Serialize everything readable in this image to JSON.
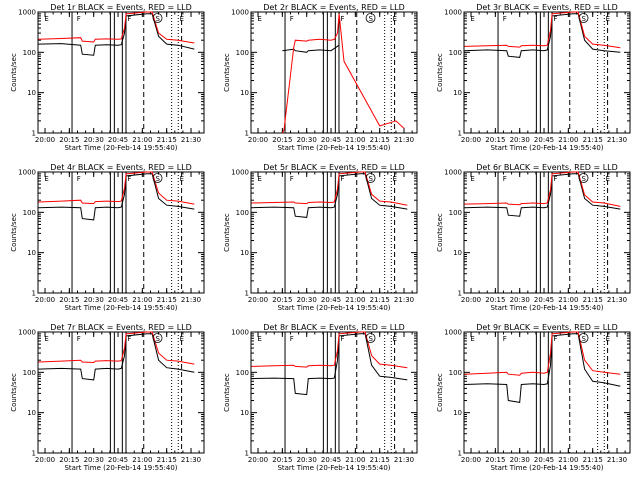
{
  "chart_data": [
    {
      "type": "line",
      "title": "Det 1r BLACK = Events, RED = LLD",
      "xlabel": "Start Time (20-Feb-14 19:55:40)",
      "ylabel": "Counts/sec",
      "yscale": "log",
      "ylim": [
        1,
        1000
      ],
      "xlim": [
        "19:55:40",
        "21:38:00"
      ],
      "x_tick_labels": [
        "20:00",
        "20:15",
        "20:30",
        "20:45",
        "21:00",
        "21:15",
        "21:30"
      ],
      "y_tick_labels": [
        "1",
        "10",
        "100",
        "1000"
      ],
      "series": [
        {
          "color": "#000000",
          "x": [
            "19:56",
            "20:10",
            "20:22",
            "20:23",
            "20:30",
            "20:31",
            "20:38",
            "20:45",
            "20:47",
            "20:49",
            "20:50",
            "21:03",
            "21:06",
            "21:10",
            "21:15",
            "21:22",
            "21:32"
          ],
          "y": [
            160,
            165,
            150,
            90,
            85,
            150,
            155,
            150,
            155,
            300,
            800,
            900,
            900,
            250,
            160,
            150,
            120
          ]
        },
        {
          "color": "#ff0000",
          "x": [
            "19:56",
            "20:10",
            "20:22",
            "20:23",
            "20:30",
            "20:31",
            "20:38",
            "20:45",
            "20:47",
            "20:49",
            "20:50",
            "21:03",
            "21:06",
            "21:10",
            "21:15",
            "21:22",
            "21:32"
          ],
          "y": [
            210,
            220,
            230,
            190,
            180,
            210,
            215,
            210,
            215,
            400,
            900,
            1000,
            1000,
            300,
            210,
            200,
            170
          ]
        }
      ],
      "annotations": [
        "E",
        "F",
        "F",
        "S",
        "E"
      ]
    },
    {
      "type": "line",
      "title": "Det 2r BLACK = Events, RED = LLD",
      "xlabel": "Start Time (20-Feb-14 19:55:40)",
      "ylabel": "Counts/sec",
      "yscale": "log",
      "ylim": [
        1,
        1000
      ],
      "xlim": [
        "19:55:40",
        "21:38:00"
      ],
      "x_tick_labels": [
        "20:00",
        "20:15",
        "20:30",
        "20:45",
        "21:00",
        "21:15",
        "21:30"
      ],
      "y_tick_labels": [
        "1",
        "10",
        "100",
        "1000"
      ],
      "series": [
        {
          "color": "#000000",
          "x": [
            "20:15",
            "20:22",
            "20:23",
            "20:30",
            "20:31",
            "20:38",
            "20:45",
            "20:50"
          ],
          "y": [
            110,
            120,
            110,
            100,
            110,
            115,
            110,
            150
          ]
        },
        {
          "color": "#ff0000",
          "x": [
            "20:15",
            "20:16",
            "20:22",
            "20:23",
            "20:30",
            "20:31",
            "20:38",
            "20:45",
            "20:47",
            "20:49",
            "20:50",
            "20:53",
            "21:15",
            "21:25",
            "21:30"
          ],
          "y": [
            1,
            1.2,
            130,
            200,
            190,
            200,
            210,
            200,
            210,
            300,
            900,
            60,
            1.5,
            2,
            1.3
          ]
        }
      ],
      "annotations": [
        "E",
        "F",
        "F",
        "S",
        "E"
      ]
    },
    {
      "type": "line",
      "title": "Det 3r BLACK = Events, RED = LLD",
      "xlabel": "Start Time (20-Feb-14 19:55:40)",
      "ylabel": "Counts/sec",
      "yscale": "log",
      "ylim": [
        1,
        1000
      ],
      "xlim": [
        "19:55:40",
        "21:38:00"
      ],
      "x_tick_labels": [
        "20:00",
        "20:15",
        "20:30",
        "20:45",
        "21:00",
        "21:15",
        "21:30"
      ],
      "y_tick_labels": [
        "1",
        "10",
        "100",
        "1000"
      ],
      "series": [
        {
          "color": "#000000",
          "x": [
            "19:56",
            "20:10",
            "20:22",
            "20:23",
            "20:30",
            "20:31",
            "20:38",
            "20:45",
            "20:47",
            "20:49",
            "20:50",
            "21:03",
            "21:06",
            "21:10",
            "21:15",
            "21:22",
            "21:32"
          ],
          "y": [
            110,
            115,
            110,
            80,
            75,
            110,
            115,
            110,
            115,
            250,
            800,
            900,
            900,
            200,
            120,
            110,
            100
          ]
        },
        {
          "color": "#ff0000",
          "x": [
            "19:56",
            "20:10",
            "20:22",
            "20:23",
            "20:30",
            "20:31",
            "20:38",
            "20:45",
            "20:47",
            "20:49",
            "20:50",
            "21:03",
            "21:06",
            "21:10",
            "21:15",
            "21:22",
            "21:32"
          ],
          "y": [
            140,
            145,
            150,
            140,
            135,
            145,
            150,
            145,
            150,
            350,
            900,
            1000,
            1000,
            250,
            160,
            150,
            130
          ]
        }
      ],
      "annotations": [
        "E",
        "F",
        "F",
        "S",
        "E"
      ]
    },
    {
      "type": "line",
      "title": "Det 4r BLACK = Events, RED = LLD",
      "xlabel": "Start Time (20-Feb-14 19:55:40)",
      "ylabel": "Counts/sec",
      "yscale": "log",
      "ylim": [
        1,
        1000
      ],
      "xlim": [
        "19:55:40",
        "21:38:00"
      ],
      "x_tick_labels": [
        "20:00",
        "20:15",
        "20:30",
        "20:45",
        "21:00",
        "21:15",
        "21:30"
      ],
      "y_tick_labels": [
        "1",
        "10",
        "100",
        "1000"
      ],
      "series": [
        {
          "color": "#000000",
          "x": [
            "19:56",
            "20:10",
            "20:22",
            "20:23",
            "20:30",
            "20:31",
            "20:38",
            "20:45",
            "20:47",
            "20:49",
            "20:50",
            "21:03",
            "21:06",
            "21:10",
            "21:15",
            "21:22",
            "21:32"
          ],
          "y": [
            130,
            135,
            130,
            70,
            65,
            130,
            135,
            130,
            135,
            280,
            800,
            900,
            900,
            220,
            150,
            140,
            120
          ]
        },
        {
          "color": "#ff0000",
          "x": [
            "19:56",
            "20:10",
            "20:22",
            "20:23",
            "20:30",
            "20:31",
            "20:38",
            "20:45",
            "20:47",
            "20:49",
            "20:50",
            "21:03",
            "21:06",
            "21:10",
            "21:15",
            "21:22",
            "21:32"
          ],
          "y": [
            180,
            190,
            200,
            170,
            165,
            185,
            190,
            185,
            190,
            400,
            900,
            1000,
            1000,
            300,
            200,
            190,
            160
          ]
        }
      ],
      "annotations": [
        "E",
        "F",
        "F",
        "S",
        "E"
      ]
    },
    {
      "type": "line",
      "title": "Det 5r BLACK = Events, RED = LLD",
      "xlabel": "Start Time (20-Feb-14 19:55:40)",
      "ylabel": "Counts/sec",
      "yscale": "log",
      "ylim": [
        1,
        1000
      ],
      "xlim": [
        "19:55:40",
        "21:38:00"
      ],
      "x_tick_labels": [
        "20:00",
        "20:15",
        "20:30",
        "20:45",
        "21:00",
        "21:15",
        "21:30"
      ],
      "y_tick_labels": [
        "1",
        "10",
        "100",
        "1000"
      ],
      "series": [
        {
          "color": "#000000",
          "x": [
            "19:56",
            "20:10",
            "20:22",
            "20:23",
            "20:30",
            "20:31",
            "20:38",
            "20:45",
            "20:47",
            "20:49",
            "20:50",
            "21:03",
            "21:06",
            "21:10",
            "21:15",
            "21:22",
            "21:32"
          ],
          "y": [
            130,
            135,
            130,
            80,
            75,
            130,
            135,
            130,
            135,
            280,
            800,
            900,
            900,
            220,
            150,
            140,
            120
          ]
        },
        {
          "color": "#ff0000",
          "x": [
            "19:56",
            "20:10",
            "20:22",
            "20:23",
            "20:30",
            "20:31",
            "20:38",
            "20:45",
            "20:47",
            "20:49",
            "20:50",
            "21:03",
            "21:06",
            "21:10",
            "21:15",
            "21:22",
            "21:32"
          ],
          "y": [
            170,
            175,
            180,
            170,
            165,
            175,
            180,
            175,
            180,
            380,
            900,
            1000,
            1000,
            280,
            190,
            180,
            150
          ]
        }
      ],
      "annotations": [
        "E",
        "F",
        "F",
        "S",
        "E"
      ]
    },
    {
      "type": "line",
      "title": "Det 6r BLACK = Events, RED = LLD",
      "xlabel": "Start Time (20-Feb-14 19:55:40)",
      "ylabel": "Counts/sec",
      "yscale": "log",
      "ylim": [
        1,
        1000
      ],
      "xlim": [
        "19:55:40",
        "21:38:00"
      ],
      "x_tick_labels": [
        "20:00",
        "20:15",
        "20:30",
        "20:45",
        "21:00",
        "21:15",
        "21:30"
      ],
      "y_tick_labels": [
        "1",
        "10",
        "100",
        "1000"
      ],
      "series": [
        {
          "color": "#000000",
          "x": [
            "19:56",
            "20:10",
            "20:22",
            "20:23",
            "20:30",
            "20:31",
            "20:38",
            "20:45",
            "20:47",
            "20:49",
            "20:50",
            "21:03",
            "21:06",
            "21:10",
            "21:15",
            "21:22",
            "21:32"
          ],
          "y": [
            130,
            135,
            130,
            85,
            80,
            130,
            135,
            130,
            135,
            280,
            800,
            900,
            900,
            220,
            150,
            140,
            120
          ]
        },
        {
          "color": "#ff0000",
          "x": [
            "19:56",
            "20:10",
            "20:22",
            "20:23",
            "20:30",
            "20:31",
            "20:38",
            "20:45",
            "20:47",
            "20:49",
            "20:50",
            "21:03",
            "21:06",
            "21:10",
            "21:15",
            "21:22",
            "21:32"
          ],
          "y": [
            160,
            165,
            170,
            160,
            155,
            165,
            170,
            165,
            170,
            360,
            900,
            1000,
            1000,
            270,
            180,
            170,
            140
          ]
        }
      ],
      "annotations": [
        "E",
        "F",
        "F",
        "S",
        "E"
      ]
    },
    {
      "type": "line",
      "title": "Det 7r BLACK = Events, RED = LLD",
      "xlabel": "Start Time (20-Feb-14 19:55:40)",
      "ylabel": "Counts/sec",
      "yscale": "log",
      "ylim": [
        1,
        1000
      ],
      "xlim": [
        "19:55:40",
        "21:38:00"
      ],
      "x_tick_labels": [
        "20:00",
        "20:15",
        "20:30",
        "20:45",
        "21:00",
        "21:15",
        "21:30"
      ],
      "y_tick_labels": [
        "1",
        "10",
        "100",
        "1000"
      ],
      "series": [
        {
          "color": "#000000",
          "x": [
            "19:56",
            "20:10",
            "20:22",
            "20:23",
            "20:30",
            "20:31",
            "20:38",
            "20:45",
            "20:47",
            "20:49",
            "20:50",
            "21:03",
            "21:06",
            "21:10",
            "21:15",
            "21:22",
            "21:32"
          ],
          "y": [
            120,
            125,
            120,
            70,
            65,
            120,
            125,
            120,
            125,
            260,
            800,
            900,
            900,
            200,
            130,
            120,
            100
          ]
        },
        {
          "color": "#ff0000",
          "x": [
            "19:56",
            "20:10",
            "20:22",
            "20:23",
            "20:30",
            "20:31",
            "20:38",
            "20:45",
            "20:47",
            "20:49",
            "20:50",
            "21:03",
            "21:06",
            "21:10",
            "21:15",
            "21:22",
            "21:32"
          ],
          "y": [
            180,
            190,
            200,
            180,
            175,
            190,
            195,
            190,
            195,
            400,
            900,
            1000,
            1000,
            300,
            200,
            190,
            160
          ]
        }
      ],
      "annotations": [
        "E",
        "F",
        "F",
        "S",
        "E"
      ]
    },
    {
      "type": "line",
      "title": "Det 8r BLACK = Events, RED = LLD",
      "xlabel": "Start Time (20-Feb-14 19:55:40)",
      "ylabel": "Counts/sec",
      "yscale": "log",
      "ylim": [
        1,
        1000
      ],
      "xlim": [
        "19:55:40",
        "21:38:00"
      ],
      "x_tick_labels": [
        "20:00",
        "20:15",
        "20:30",
        "20:45",
        "21:00",
        "21:15",
        "21:30"
      ],
      "y_tick_labels": [
        "1",
        "10",
        "100",
        "1000"
      ],
      "series": [
        {
          "color": "#000000",
          "x": [
            "19:56",
            "20:10",
            "20:22",
            "20:23",
            "20:30",
            "20:31",
            "20:38",
            "20:45",
            "20:47",
            "20:49",
            "20:50",
            "21:03",
            "21:06",
            "21:10",
            "21:15",
            "21:22",
            "21:32"
          ],
          "y": [
            70,
            72,
            70,
            30,
            28,
            70,
            72,
            70,
            72,
            200,
            800,
            900,
            900,
            150,
            80,
            75,
            65
          ]
        },
        {
          "color": "#ff0000",
          "x": [
            "19:56",
            "20:10",
            "20:22",
            "20:23",
            "20:30",
            "20:31",
            "20:38",
            "20:45",
            "20:47",
            "20:49",
            "20:50",
            "21:03",
            "21:06",
            "21:10",
            "21:15",
            "21:22",
            "21:32"
          ],
          "y": [
            140,
            145,
            150,
            140,
            135,
            145,
            150,
            145,
            150,
            350,
            900,
            1000,
            1000,
            260,
            160,
            150,
            130
          ]
        }
      ],
      "annotations": [
        "E",
        "F",
        "F",
        "S",
        "E"
      ]
    },
    {
      "type": "line",
      "title": "Det 9r BLACK = Events, RED = LLD",
      "xlabel": "Start Time (20-Feb-14 19:55:40)",
      "ylabel": "Counts/sec",
      "yscale": "log",
      "ylim": [
        1,
        1000
      ],
      "xlim": [
        "19:55:40",
        "21:38:00"
      ],
      "x_tick_labels": [
        "20:00",
        "20:15",
        "20:30",
        "20:45",
        "21:00",
        "21:15",
        "21:30"
      ],
      "y_tick_labels": [
        "1",
        "10",
        "100",
        "1000"
      ],
      "series": [
        {
          "color": "#000000",
          "x": [
            "19:56",
            "20:10",
            "20:22",
            "20:23",
            "20:30",
            "20:31",
            "20:38",
            "20:45",
            "20:47",
            "20:49",
            "20:50",
            "21:03",
            "21:06",
            "21:10",
            "21:15",
            "21:22",
            "21:32"
          ],
          "y": [
            50,
            52,
            50,
            20,
            18,
            50,
            52,
            50,
            52,
            150,
            800,
            900,
            900,
            120,
            60,
            55,
            45
          ]
        },
        {
          "color": "#ff0000",
          "x": [
            "19:56",
            "20:10",
            "20:22",
            "20:23",
            "20:30",
            "20:31",
            "20:38",
            "20:45",
            "20:47",
            "20:49",
            "20:50",
            "21:03",
            "21:06",
            "21:10",
            "21:15",
            "21:22",
            "21:32"
          ],
          "y": [
            90,
            95,
            100,
            90,
            85,
            95,
            100,
            95,
            100,
            300,
            900,
            1000,
            1000,
            200,
            110,
            100,
            90
          ]
        }
      ],
      "annotations": [
        "E",
        "F",
        "F",
        "S",
        "E"
      ]
    }
  ]
}
